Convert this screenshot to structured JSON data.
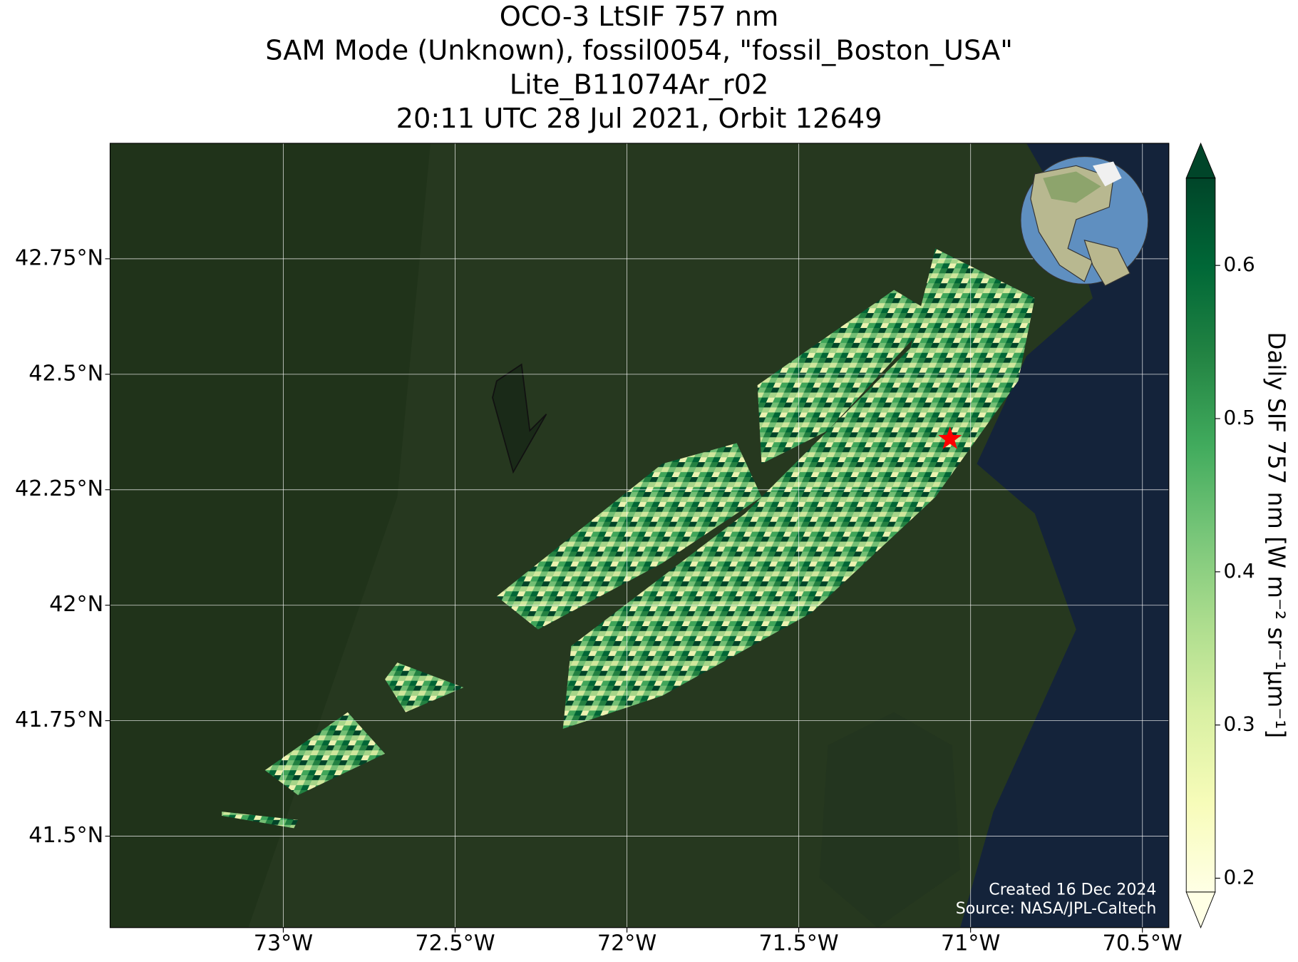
{
  "chart_data": {
    "type": "map",
    "title": [
      "OCO-3 LtSIF 757 nm",
      "SAM Mode (Unknown), fossil0054, \"fossil_Boston_USA\"",
      "Lite_B11074Ar_r02",
      "20:11 UTC 28 Jul 2021, Orbit 12649"
    ],
    "xlim": [
      -73.504,
      -70.423
    ],
    "ylim": [
      41.302,
      43.0
    ],
    "xticks": [
      {
        "value": -73,
        "label": "73°W"
      },
      {
        "value": -72.5,
        "label": "72.5°W"
      },
      {
        "value": -72,
        "label": "72°W"
      },
      {
        "value": -71.5,
        "label": "71.5°W"
      },
      {
        "value": -71,
        "label": "71°W"
      },
      {
        "value": -70.5,
        "label": "70.5°W"
      }
    ],
    "yticks": [
      {
        "value": 41.5,
        "label": "41.5°N"
      },
      {
        "value": 41.75,
        "label": "41.75°N"
      },
      {
        "value": 42,
        "label": "42°N"
      },
      {
        "value": 42.25,
        "label": "42.25°N"
      },
      {
        "value": 42.5,
        "label": "42.5°N"
      },
      {
        "value": 42.75,
        "label": "42.75°N"
      }
    ],
    "grid": true,
    "site": {
      "lon": -71.06,
      "lat": 42.36,
      "color": "#ff0000"
    },
    "colorbar": {
      "label": "Daily SIF 757 nm [W m⁻² sr⁻¹μm⁻¹]",
      "lim": [
        0.191,
        0.657
      ],
      "ticks": [
        0.2,
        0.3,
        0.4,
        0.5,
        0.6
      ],
      "extend": "both"
    },
    "credits": [
      "Created 16 Dec 2024",
      "Source: NASA/JPL-Caltech"
    ]
  }
}
